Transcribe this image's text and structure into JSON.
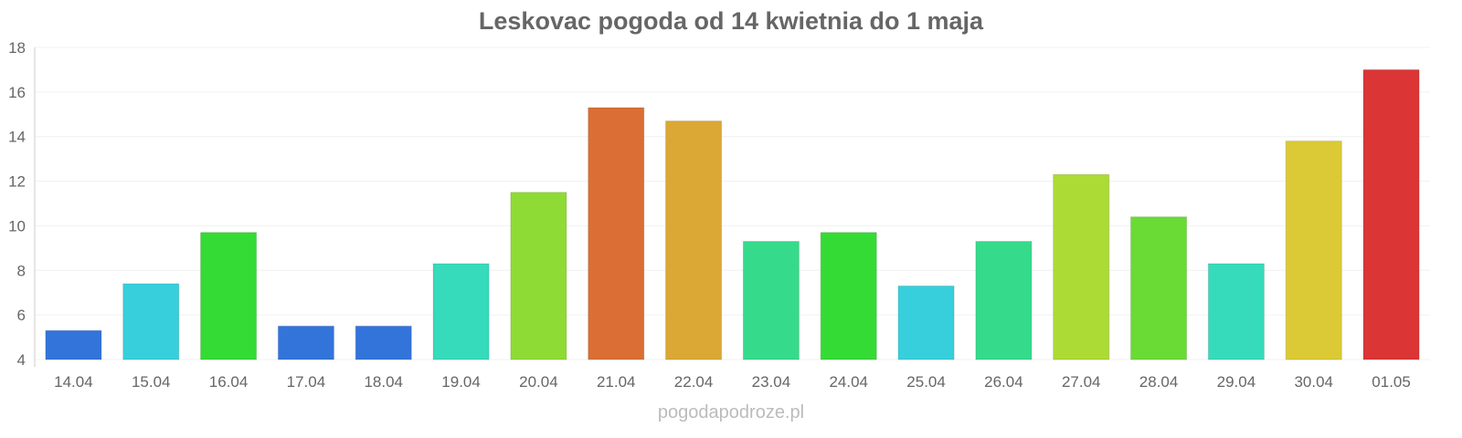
{
  "chart_data": {
    "type": "bar",
    "title": "Leskovac pogoda od 14 kwietnia do 1 maja",
    "xlabel": "",
    "ylabel": "",
    "ylim": [
      4,
      18
    ],
    "yticks": [
      4,
      6,
      8,
      10,
      12,
      14,
      16,
      18
    ],
    "grid": true,
    "categories": [
      "14.04",
      "15.04",
      "16.04",
      "17.04",
      "18.04",
      "19.04",
      "20.04",
      "21.04",
      "22.04",
      "23.04",
      "24.04",
      "25.04",
      "26.04",
      "27.04",
      "28.04",
      "29.04",
      "30.04",
      "01.05"
    ],
    "values": [
      5.3,
      7.4,
      9.7,
      5.5,
      5.5,
      8.3,
      11.5,
      15.3,
      14.7,
      9.3,
      9.7,
      7.3,
      9.3,
      12.3,
      10.4,
      8.3,
      13.8,
      17.0
    ],
    "colors": [
      "#3374db",
      "#37cfdb",
      "#35db35",
      "#3374db",
      "#3374db",
      "#35dbbb",
      "#8fdb35",
      "#db6e35",
      "#dba835",
      "#35db8a",
      "#35db35",
      "#37cfdb",
      "#35db8a",
      "#addb35",
      "#6adb35",
      "#35dbbb",
      "#dbca35",
      "#db3535"
    ]
  },
  "watermark": "pogodapodroze.pl"
}
